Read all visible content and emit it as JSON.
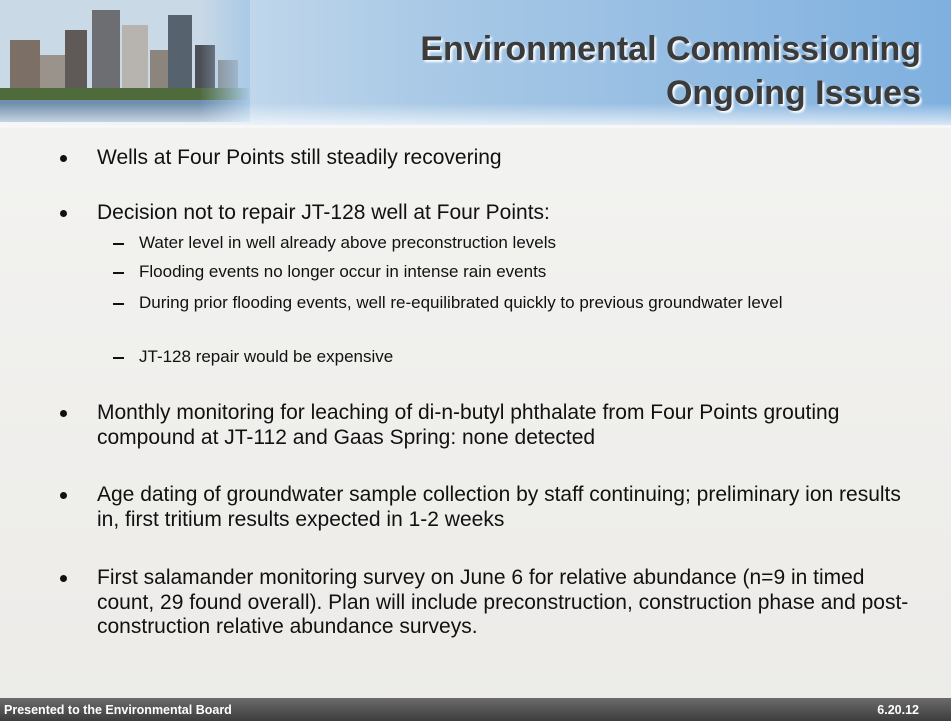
{
  "header": {
    "title_lines": [
      "Environmental Commissioning",
      "Ongoing Issues"
    ]
  },
  "bullets": [
    {
      "text": "Wells at Four Points still steadily recovering"
    },
    {
      "text": "Decision not to repair JT-128 well at Four Points:",
      "sub_items": [
        "Water level in well already above preconstruction levels",
        "Flooding events no longer occur in intense rain events",
        "During prior flooding events, well re-equilibrated quickly to previous groundwater level",
        "JT-128 repair would be expensive"
      ]
    },
    {
      "text": "Monthly monitoring for leaching of di-n-butyl phthalate from Four Points grouting compound at JT-112 and Gaas Spring: none detected"
    },
    {
      "text": "Age dating of groundwater sample collection by staff continuing; preliminary ion results in, first tritium results expected in 1-2 weeks"
    },
    {
      "text": "First salamander monitoring survey on June 6 for relative abundance (n=9 in timed count, 29 found overall). Plan will include preconstruction, construction phase and post-construction relative abundance surveys."
    }
  ],
  "footer": {
    "left": "Presented to the Environmental Board",
    "right": "6.20.12"
  }
}
